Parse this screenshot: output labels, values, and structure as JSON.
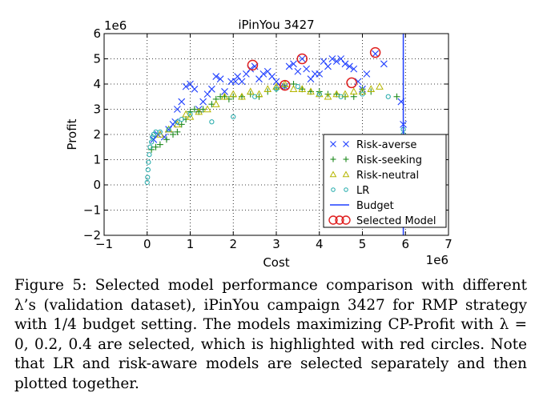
{
  "chart_data": {
    "type": "scatter",
    "title": "iPinYou 3427",
    "xlabel": "Cost",
    "ylabel": "Profit",
    "x_multiplier": "1e6",
    "y_multiplier": "1e6",
    "xlim": [
      -1,
      7
    ],
    "ylim": [
      -2,
      6
    ],
    "xticks": [
      -1,
      0,
      1,
      2,
      3,
      4,
      5,
      6,
      7
    ],
    "yticks": [
      -2,
      -1,
      0,
      1,
      2,
      3,
      4,
      5,
      6
    ],
    "xtick_labels": [
      "−1",
      "0",
      "1",
      "2",
      "3",
      "4",
      "5",
      "6",
      "7"
    ],
    "ytick_labels": [
      "−2",
      "−1",
      "0",
      "1",
      "2",
      "3",
      "4",
      "5",
      "6"
    ],
    "grid": true,
    "legend_position": "lower-right",
    "series": [
      {
        "name": "Risk-averse",
        "marker": "x",
        "color": "#1f3fff",
        "points": [
          [
            0.15,
            1.8
          ],
          [
            0.25,
            2.0
          ],
          [
            0.4,
            1.9
          ],
          [
            0.5,
            2.2
          ],
          [
            0.6,
            2.4
          ],
          [
            0.65,
            2.5
          ],
          [
            0.7,
            3.0
          ],
          [
            0.8,
            3.3
          ],
          [
            0.9,
            3.9
          ],
          [
            1.0,
            4.0
          ],
          [
            1.1,
            3.8
          ],
          [
            1.2,
            3.0
          ],
          [
            1.3,
            3.3
          ],
          [
            1.4,
            3.6
          ],
          [
            1.5,
            3.8
          ],
          [
            1.6,
            4.3
          ],
          [
            1.7,
            4.2
          ],
          [
            1.8,
            3.7
          ],
          [
            1.95,
            4.1
          ],
          [
            2.05,
            4.1
          ],
          [
            2.1,
            4.3
          ],
          [
            2.2,
            4.1
          ],
          [
            2.3,
            4.4
          ],
          [
            2.4,
            4.6
          ],
          [
            2.5,
            4.7
          ],
          [
            2.6,
            4.2
          ],
          [
            2.7,
            4.4
          ],
          [
            2.8,
            4.5
          ],
          [
            2.9,
            4.3
          ],
          [
            3.0,
            4.1
          ],
          [
            3.1,
            3.9
          ],
          [
            3.2,
            3.9
          ],
          [
            3.3,
            4.7
          ],
          [
            3.4,
            4.8
          ],
          [
            3.5,
            4.5
          ],
          [
            3.6,
            5.0
          ],
          [
            3.7,
            4.6
          ],
          [
            3.8,
            4.2
          ],
          [
            3.9,
            4.4
          ],
          [
            4.0,
            4.4
          ],
          [
            4.1,
            4.9
          ],
          [
            4.2,
            4.7
          ],
          [
            4.3,
            5.0
          ],
          [
            4.4,
            4.9
          ],
          [
            4.5,
            5.0
          ],
          [
            4.6,
            4.8
          ],
          [
            4.7,
            4.7
          ],
          [
            4.8,
            4.6
          ],
          [
            4.9,
            4.1
          ],
          [
            5.0,
            3.8
          ],
          [
            5.1,
            4.4
          ],
          [
            5.3,
            5.2
          ],
          [
            5.5,
            4.8
          ],
          [
            5.9,
            3.3
          ],
          [
            5.95,
            2.4
          ]
        ]
      },
      {
        "name": "Risk-seeking",
        "marker": "+",
        "color": "#1e8a1e",
        "points": [
          [
            0.1,
            1.4
          ],
          [
            0.2,
            1.5
          ],
          [
            0.3,
            1.6
          ],
          [
            0.45,
            1.8
          ],
          [
            0.6,
            2.0
          ],
          [
            0.7,
            2.1
          ],
          [
            0.8,
            2.4
          ],
          [
            0.9,
            2.6
          ],
          [
            1.0,
            2.9
          ],
          [
            1.1,
            3.0
          ],
          [
            1.2,
            2.9
          ],
          [
            1.3,
            3.0
          ],
          [
            1.5,
            3.2
          ],
          [
            1.6,
            3.4
          ],
          [
            1.7,
            3.5
          ],
          [
            1.8,
            3.5
          ],
          [
            1.9,
            3.4
          ],
          [
            2.0,
            3.5
          ],
          [
            2.2,
            3.5
          ],
          [
            2.4,
            3.6
          ],
          [
            2.6,
            3.5
          ],
          [
            2.8,
            3.7
          ],
          [
            3.0,
            3.8
          ],
          [
            3.2,
            3.9
          ],
          [
            3.4,
            4.0
          ],
          [
            3.6,
            3.8
          ],
          [
            3.8,
            3.7
          ],
          [
            4.0,
            3.7
          ],
          [
            4.2,
            3.6
          ],
          [
            4.4,
            3.6
          ],
          [
            4.6,
            3.5
          ],
          [
            4.8,
            3.5
          ],
          [
            5.0,
            3.8
          ],
          [
            5.2,
            3.7
          ],
          [
            5.8,
            3.5
          ]
        ]
      },
      {
        "name": "Risk-neutral",
        "marker": "triangle",
        "color": "#b5b500",
        "points": [
          [
            0.3,
            2.0
          ],
          [
            0.5,
            2.2
          ],
          [
            0.7,
            2.4
          ],
          [
            0.9,
            2.8
          ],
          [
            1.0,
            2.7
          ],
          [
            1.2,
            2.9
          ],
          [
            1.4,
            3.0
          ],
          [
            1.6,
            3.2
          ],
          [
            1.8,
            3.5
          ],
          [
            2.0,
            3.6
          ],
          [
            2.2,
            3.5
          ],
          [
            2.4,
            3.7
          ],
          [
            2.6,
            3.6
          ],
          [
            2.8,
            3.8
          ],
          [
            3.0,
            3.9
          ],
          [
            3.2,
            4.0
          ],
          [
            3.4,
            3.8
          ],
          [
            3.6,
            3.8
          ],
          [
            3.8,
            3.7
          ],
          [
            4.0,
            3.6
          ],
          [
            4.2,
            3.5
          ],
          [
            4.4,
            3.6
          ],
          [
            4.6,
            3.6
          ],
          [
            4.8,
            3.7
          ],
          [
            5.0,
            3.7
          ],
          [
            5.2,
            3.8
          ],
          [
            5.4,
            3.9
          ]
        ]
      },
      {
        "name": "LR",
        "marker": "circle",
        "color": "#22aaaa",
        "points": [
          [
            0.0,
            0.1
          ],
          [
            0.01,
            0.3
          ],
          [
            0.02,
            0.6
          ],
          [
            0.03,
            0.9
          ],
          [
            0.05,
            1.2
          ],
          [
            0.07,
            1.5
          ],
          [
            0.1,
            1.7
          ],
          [
            0.12,
            1.9
          ],
          [
            0.15,
            2.0
          ],
          [
            0.2,
            2.1
          ],
          [
            0.3,
            2.1
          ],
          [
            0.5,
            2.2
          ],
          [
            0.7,
            2.5
          ],
          [
            0.8,
            2.6
          ],
          [
            1.0,
            2.8
          ],
          [
            1.5,
            2.5
          ],
          [
            2.0,
            2.7
          ],
          [
            2.5,
            3.5
          ],
          [
            3.0,
            3.8
          ],
          [
            3.5,
            3.9
          ],
          [
            4.0,
            3.6
          ],
          [
            4.5,
            3.5
          ],
          [
            5.0,
            3.6
          ],
          [
            5.6,
            3.5
          ],
          [
            5.95,
            2.2
          ],
          [
            5.95,
            2.0
          ],
          [
            5.95,
            1.8
          ]
        ]
      },
      {
        "name": "Budget",
        "marker": "line",
        "color": "#1f3fff",
        "x_value": 5.95
      },
      {
        "name": "Selected Model",
        "marker": "circle-open",
        "color": "#e02020",
        "points": [
          [
            2.45,
            4.75
          ],
          [
            3.2,
            3.95
          ],
          [
            3.6,
            5.0
          ],
          [
            4.75,
            4.05
          ],
          [
            5.3,
            5.25
          ]
        ]
      }
    ],
    "legend": [
      "Risk-averse",
      "Risk-seeking",
      "Risk-neutral",
      "LR",
      "Budget",
      "Selected Model"
    ]
  },
  "caption": {
    "label": "Figure 5:",
    "text": " Selected model performance comparison with different λ’s (validation dataset), iPinYou campaign 3427 for RMP strategy with 1/4 budget setting. The models maximizing CP-Profit with λ = 0, 0.2, 0.4 are selected, which is highlighted with red circles. Note that LR and risk-aware models are selected separately and then plotted together."
  }
}
